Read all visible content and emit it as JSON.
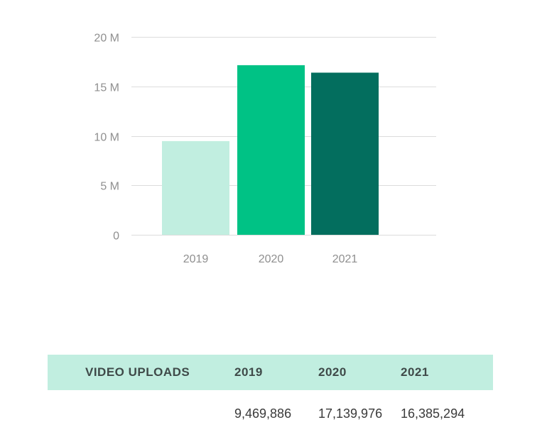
{
  "chart_data": {
    "type": "bar",
    "categories": [
      "2019",
      "2020",
      "2021"
    ],
    "values": [
      9469886,
      17139976,
      16385294
    ],
    "colors": [
      "#c1eee0",
      "#00c285",
      "#036e5e"
    ],
    "ylim": [
      0,
      20000000
    ],
    "yticks": [
      0,
      5000000,
      10000000,
      15000000,
      20000000
    ],
    "ytick_labels": [
      "0",
      "5 M",
      "10 M",
      "15 M",
      "20 M"
    ],
    "grid": true,
    "legend": "none",
    "title": "",
    "xlabel": "",
    "ylabel": ""
  },
  "table": {
    "headers": [
      "VIDEO UPLOADS",
      "2019",
      "2020",
      "2021"
    ],
    "rows": [
      [
        "",
        "9,469,886",
        "17,139,976",
        "16,385,294"
      ]
    ]
  }
}
